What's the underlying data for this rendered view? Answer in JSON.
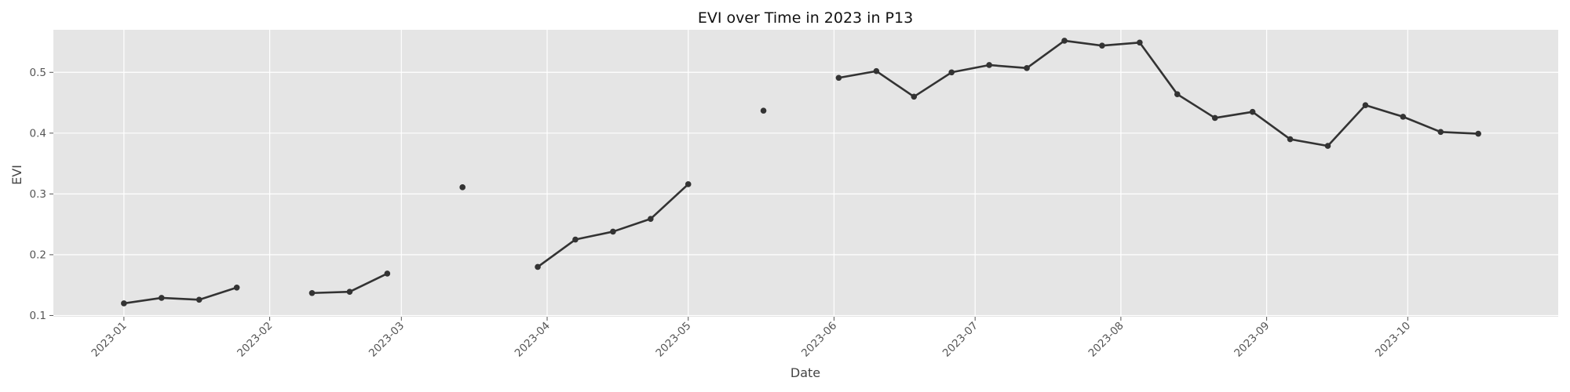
{
  "chart_data": {
    "type": "line",
    "title": "EVI over Time in 2023 in P13",
    "xlabel": "Date",
    "ylabel": "EVI",
    "x_range": [
      "2022-12-17",
      "2023-11-02"
    ],
    "ylim": [
      0.098,
      0.57
    ],
    "x_ticks": [
      "2023-01",
      "2023-02",
      "2023-03",
      "2023-04",
      "2023-05",
      "2023-06",
      "2023-07",
      "2023-08",
      "2023-09",
      "2023-10"
    ],
    "x_tick_dates": [
      "2023-01-01",
      "2023-02-01",
      "2023-03-01",
      "2023-04-01",
      "2023-05-01",
      "2023-06-01",
      "2023-07-01",
      "2023-08-01",
      "2023-09-01",
      "2023-10-01"
    ],
    "y_ticks": [
      "0.1",
      "0.2",
      "0.3",
      "0.4",
      "0.5"
    ],
    "y_tick_values": [
      0.1,
      0.2,
      0.3,
      0.4,
      0.5
    ],
    "grid": true,
    "line_color": "#333333",
    "background_color": "#e5e5e5",
    "series": [
      {
        "points": [
          {
            "date": "2023-01-01",
            "value": 0.12
          },
          {
            "date": "2023-01-09",
            "value": 0.129
          },
          {
            "date": "2023-01-17",
            "value": 0.126
          },
          {
            "date": "2023-01-25",
            "value": 0.146
          },
          {
            "date": "2023-02-10",
            "value": 0.137
          },
          {
            "date": "2023-02-18",
            "value": 0.139
          },
          {
            "date": "2023-02-26",
            "value": 0.169
          },
          {
            "date": "2023-03-14",
            "value": 0.311
          },
          {
            "date": "2023-03-30",
            "value": 0.18
          },
          {
            "date": "2023-04-07",
            "value": 0.225
          },
          {
            "date": "2023-04-15",
            "value": 0.238
          },
          {
            "date": "2023-04-23",
            "value": 0.259
          },
          {
            "date": "2023-05-01",
            "value": 0.316
          },
          {
            "date": "2023-05-17",
            "value": 0.437
          },
          {
            "date": "2023-06-02",
            "value": 0.491
          },
          {
            "date": "2023-06-10",
            "value": 0.502
          },
          {
            "date": "2023-06-18",
            "value": 0.46
          },
          {
            "date": "2023-06-26",
            "value": 0.5
          },
          {
            "date": "2023-07-04",
            "value": 0.512
          },
          {
            "date": "2023-07-12",
            "value": 0.507
          },
          {
            "date": "2023-07-20",
            "value": 0.552
          },
          {
            "date": "2023-07-28",
            "value": 0.544
          },
          {
            "date": "2023-08-05",
            "value": 0.549
          },
          {
            "date": "2023-08-13",
            "value": 0.464
          },
          {
            "date": "2023-08-21",
            "value": 0.425
          },
          {
            "date": "2023-08-29",
            "value": 0.435
          },
          {
            "date": "2023-09-06",
            "value": 0.39
          },
          {
            "date": "2023-09-14",
            "value": 0.379
          },
          {
            "date": "2023-09-22",
            "value": 0.446
          },
          {
            "date": "2023-09-30",
            "value": 0.427
          },
          {
            "date": "2023-10-08",
            "value": 0.402
          },
          {
            "date": "2023-10-16",
            "value": 0.399
          }
        ]
      }
    ]
  }
}
